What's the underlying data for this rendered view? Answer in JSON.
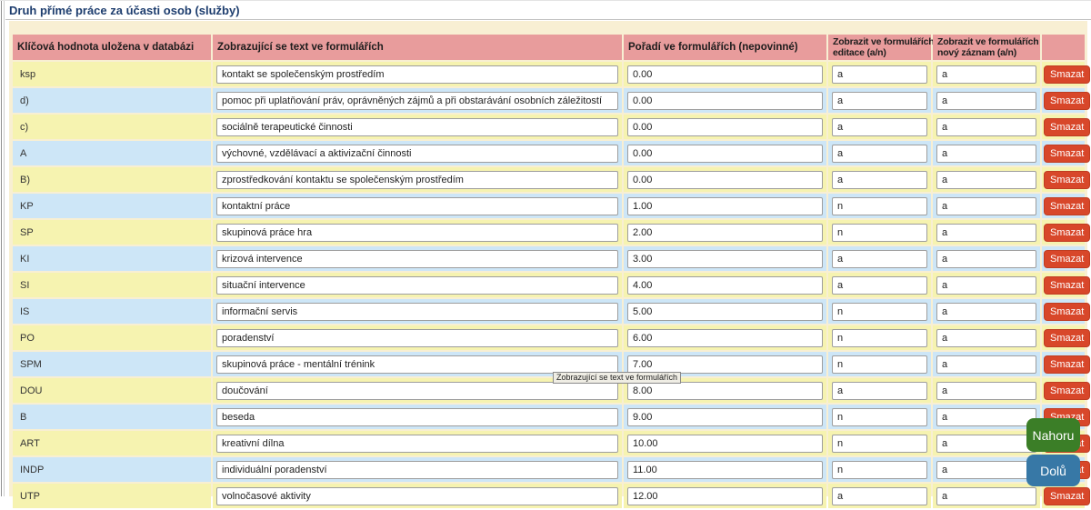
{
  "title": "Druh přímé práce za účasti osob (služby)",
  "tooltip": "Zobrazující se text ve formulářích",
  "nav": {
    "up_label": "Nahoru",
    "down_label": "Dolů"
  },
  "table": {
    "headers": [
      "Klíčová hodnota uložena v databázi",
      "Zobrazující se text ve formulářích",
      "Pořadí ve formulářích (nepovinné)",
      "Zobrazit ve formulářích editace (a/n)",
      "Zobrazit ve formulářích nový záznam (a/n)",
      ""
    ],
    "headers_wrap": [
      {
        "line1": "Zobrazit ve formulářích",
        "line2": "editace (a/n)"
      },
      {
        "line1": "Zobrazit ve formulářích",
        "line2": "nový záznam (a/n)"
      }
    ],
    "delete_label": "Smazat",
    "rows": [
      {
        "key": "ksp",
        "text": "kontakt se společenským prostředím",
        "order": "0.00",
        "edit": "a",
        "new_record": "a"
      },
      {
        "key": "d)",
        "text": "pomoc při uplatňování práv, oprávněných zájmů a při obstarávání osobních záležitostí",
        "order": "0.00",
        "edit": "a",
        "new_record": "a"
      },
      {
        "key": "c)",
        "text": "sociálně terapeutické činnosti",
        "order": "0.00",
        "edit": "a",
        "new_record": "a"
      },
      {
        "key": "A",
        "text": "výchovné, vzdělávací a aktivizační činnosti",
        "order": "0.00",
        "edit": "a",
        "new_record": "a"
      },
      {
        "key": "B)",
        "text": "zprostředkování kontaktu se společenským prostředím",
        "order": "0.00",
        "edit": "a",
        "new_record": "a"
      },
      {
        "key": "KP",
        "text": "kontaktní práce",
        "order": "1.00",
        "edit": "n",
        "new_record": "a"
      },
      {
        "key": "SP",
        "text": "skupinová práce hra",
        "order": "2.00",
        "edit": "n",
        "new_record": "a"
      },
      {
        "key": "KI",
        "text": "krizová intervence",
        "order": "3.00",
        "edit": "a",
        "new_record": "a"
      },
      {
        "key": "SI",
        "text": "situační intervence",
        "order": "4.00",
        "edit": "a",
        "new_record": "a"
      },
      {
        "key": "IS",
        "text": "informační servis",
        "order": "5.00",
        "edit": "n",
        "new_record": "a"
      },
      {
        "key": "PO",
        "text": "poradenství",
        "order": "6.00",
        "edit": "n",
        "new_record": "a"
      },
      {
        "key": "SPM",
        "text": "skupinová práce - mentální trénink",
        "order": "7.00",
        "edit": "n",
        "new_record": "a"
      },
      {
        "key": "DOU",
        "text": "doučování",
        "order": "8.00",
        "edit": "a",
        "new_record": "a"
      },
      {
        "key": "B",
        "text": "beseda",
        "order": "9.00",
        "edit": "n",
        "new_record": "a"
      },
      {
        "key": "ART",
        "text": "kreativní dílna",
        "order": "10.00",
        "edit": "n",
        "new_record": "a"
      },
      {
        "key": "INDP",
        "text": "individuální poradenství",
        "order": "11.00",
        "edit": "n",
        "new_record": "a"
      },
      {
        "key": "UTP",
        "text": "volnočasové aktivity",
        "order": "12.00",
        "edit": "a",
        "new_record": "a"
      }
    ]
  },
  "colors": {
    "title": "#1d3d6e",
    "panel_bg": "#f8efd3",
    "header_bg": "#e89c9c",
    "row_yellow": "#f6f3b0",
    "row_blue": "#cde6f7",
    "delete_bg": "#d8472a",
    "up_bg": "#3b7e27",
    "down_bg": "#3778a6"
  }
}
